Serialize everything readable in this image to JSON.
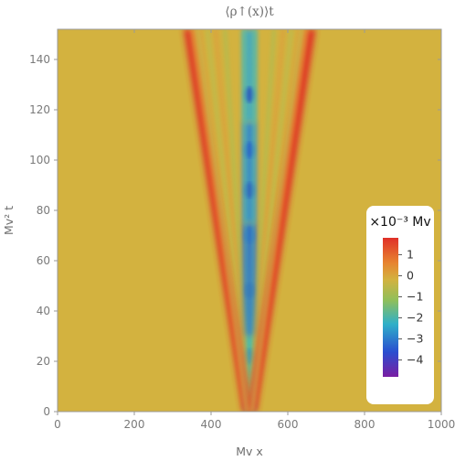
{
  "chart_data": {
    "type": "heatmap",
    "title": "⟨ρ↑(x)⟩t",
    "xlabel": "Mv x",
    "ylabel": "Mv² t",
    "xlim": [
      0,
      1000
    ],
    "ylim": [
      0,
      152
    ],
    "xticks": [
      0,
      200,
      400,
      600,
      800,
      1000
    ],
    "yticks": [
      0,
      20,
      40,
      60,
      80,
      100,
      120,
      140
    ],
    "background_value": 0,
    "light_cone_center_x": 500,
    "light_cone_edge_velocity": 1.06,
    "colorbar": {
      "title": "×10⁻³ Mv",
      "range": [
        -4.8,
        1.8
      ],
      "ticks": [
        1,
        0,
        -1,
        -2,
        -3,
        -4
      ],
      "colors": [
        "#e03028",
        "#e7842f",
        "#d3b23f",
        "#8fbf5a",
        "#2fb0c8",
        "#2a4ed0",
        "#7a1ea3"
      ]
    },
    "grid": false,
    "legend": "colorbar right, inset"
  }
}
